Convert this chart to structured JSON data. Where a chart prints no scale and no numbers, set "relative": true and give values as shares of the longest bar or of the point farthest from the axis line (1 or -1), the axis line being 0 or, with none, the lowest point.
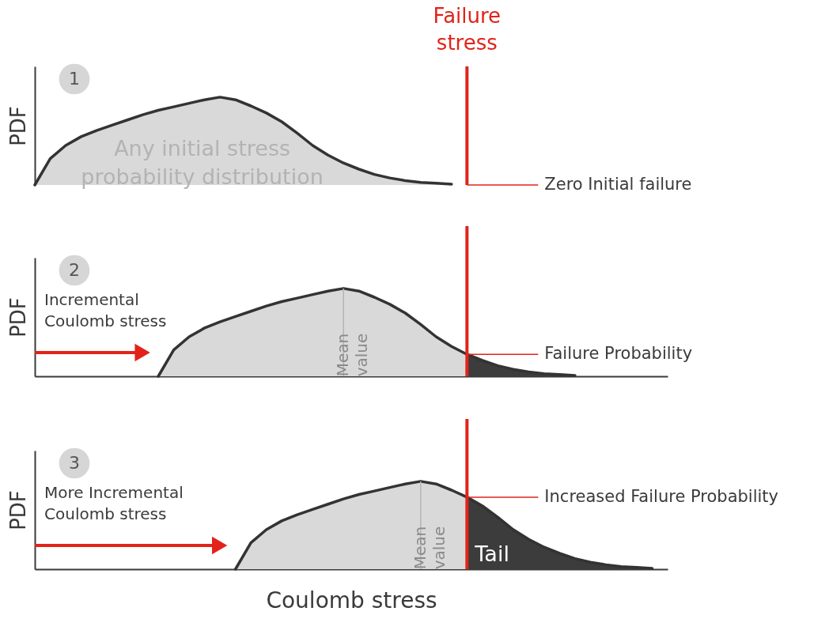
{
  "chart_data": [
    {
      "type": "area",
      "relative": true,
      "ylabel": "PDF",
      "categories": [
        null,
        null,
        null,
        null,
        null,
        null,
        null,
        null,
        null,
        null,
        null,
        null,
        null,
        null,
        null,
        null,
        null,
        null,
        null,
        null,
        null,
        null,
        null,
        null,
        null,
        null,
        null,
        null,
        null,
        null,
        null,
        null,
        null,
        null,
        null,
        null,
        null,
        null,
        null,
        null,
        null,
        null
      ],
      "series": [
        {
          "color": "#d9d9d9",
          "values": [
            0,
            0.3,
            0.45,
            0.55,
            0.62,
            0.68,
            0.74,
            0.8,
            0.85,
            0.89,
            0.93,
            0.97,
            1.0,
            0.97,
            0.9,
            0.82,
            0.72,
            0.59,
            0.45,
            0.34,
            0.25,
            0.18,
            0.12,
            0.08,
            0.05,
            0.03,
            0.02,
            0.01,
            null,
            null,
            null,
            null,
            null,
            null,
            null,
            null,
            null,
            null,
            null,
            null,
            null,
            null
          ]
        }
      ],
      "annotations": [
        "1",
        "Zero Initial failure",
        "Any initial stress\nprobability distribution",
        "Failure\nstress"
      ]
    },
    {
      "type": "area",
      "relative": true,
      "ylabel": "PDF",
      "categories": [
        null,
        null,
        null,
        null,
        null,
        null,
        null,
        null,
        null,
        null,
        null,
        null,
        null,
        null,
        null,
        null,
        null,
        null,
        null,
        null,
        null,
        null,
        null,
        null,
        null,
        null,
        null,
        null,
        null,
        null,
        null,
        null,
        null,
        null,
        null,
        null,
        null,
        null,
        null,
        null,
        null,
        null
      ],
      "series": [
        {
          "color": "#d9d9d9",
          "values": [
            null,
            null,
            null,
            null,
            null,
            null,
            null,
            null,
            0,
            0.3,
            0.45,
            0.55,
            0.62,
            0.68,
            0.74,
            0.8,
            0.85,
            0.89,
            0.93,
            0.97,
            1.0,
            0.97,
            0.9,
            0.82,
            0.72,
            0.59,
            0.45,
            0.34,
            0.25,
            null,
            null,
            null,
            null,
            null,
            null,
            null,
            null,
            null,
            null,
            null,
            null,
            null
          ]
        },
        {
          "color": "#3c3c3c",
          "values": [
            null,
            null,
            null,
            null,
            null,
            null,
            null,
            null,
            null,
            null,
            null,
            null,
            null,
            null,
            null,
            null,
            null,
            null,
            null,
            null,
            null,
            null,
            null,
            null,
            null,
            null,
            null,
            null,
            0.25,
            0.18,
            0.12,
            0.08,
            0.05,
            0.03,
            0.02,
            0.01,
            null,
            null,
            null,
            null,
            null,
            null
          ]
        }
      ],
      "annotations": [
        "2",
        "Failure Probability",
        "Incremental\nCoulomb stress",
        "Mean\nvalue"
      ]
    },
    {
      "type": "area",
      "relative": true,
      "ylabel": "PDF",
      "xlabel": "Coulomb stress",
      "categories": [
        null,
        null,
        null,
        null,
        null,
        null,
        null,
        null,
        null,
        null,
        null,
        null,
        null,
        null,
        null,
        null,
        null,
        null,
        null,
        null,
        null,
        null,
        null,
        null,
        null,
        null,
        null,
        null,
        null,
        null,
        null,
        null,
        null,
        null,
        null,
        null,
        null,
        null,
        null,
        null,
        null,
        null
      ],
      "series": [
        {
          "color": "#d9d9d9",
          "values": [
            null,
            null,
            null,
            null,
            null,
            null,
            null,
            null,
            null,
            null,
            null,
            null,
            null,
            0,
            0.3,
            0.45,
            0.55,
            0.62,
            0.68,
            0.74,
            0.8,
            0.85,
            0.89,
            0.93,
            0.97,
            1.0,
            0.97,
            0.9,
            0.82,
            null,
            null,
            null,
            null,
            null,
            null,
            null,
            null,
            null,
            null,
            null,
            null,
            null
          ]
        },
        {
          "color": "#3c3c3c",
          "values": [
            null,
            null,
            null,
            null,
            null,
            null,
            null,
            null,
            null,
            null,
            null,
            null,
            null,
            null,
            null,
            null,
            null,
            null,
            null,
            null,
            null,
            null,
            null,
            null,
            null,
            null,
            null,
            null,
            0.82,
            0.72,
            0.59,
            0.45,
            0.34,
            0.25,
            0.18,
            0.12,
            0.08,
            0.05,
            0.03,
            0.02,
            0.01,
            null
          ]
        }
      ],
      "annotations": [
        "3",
        "Increased Failure Probability",
        "More Incremental\nCoulomb stress",
        "Mean\nvalue",
        "Tail"
      ]
    }
  ]
}
